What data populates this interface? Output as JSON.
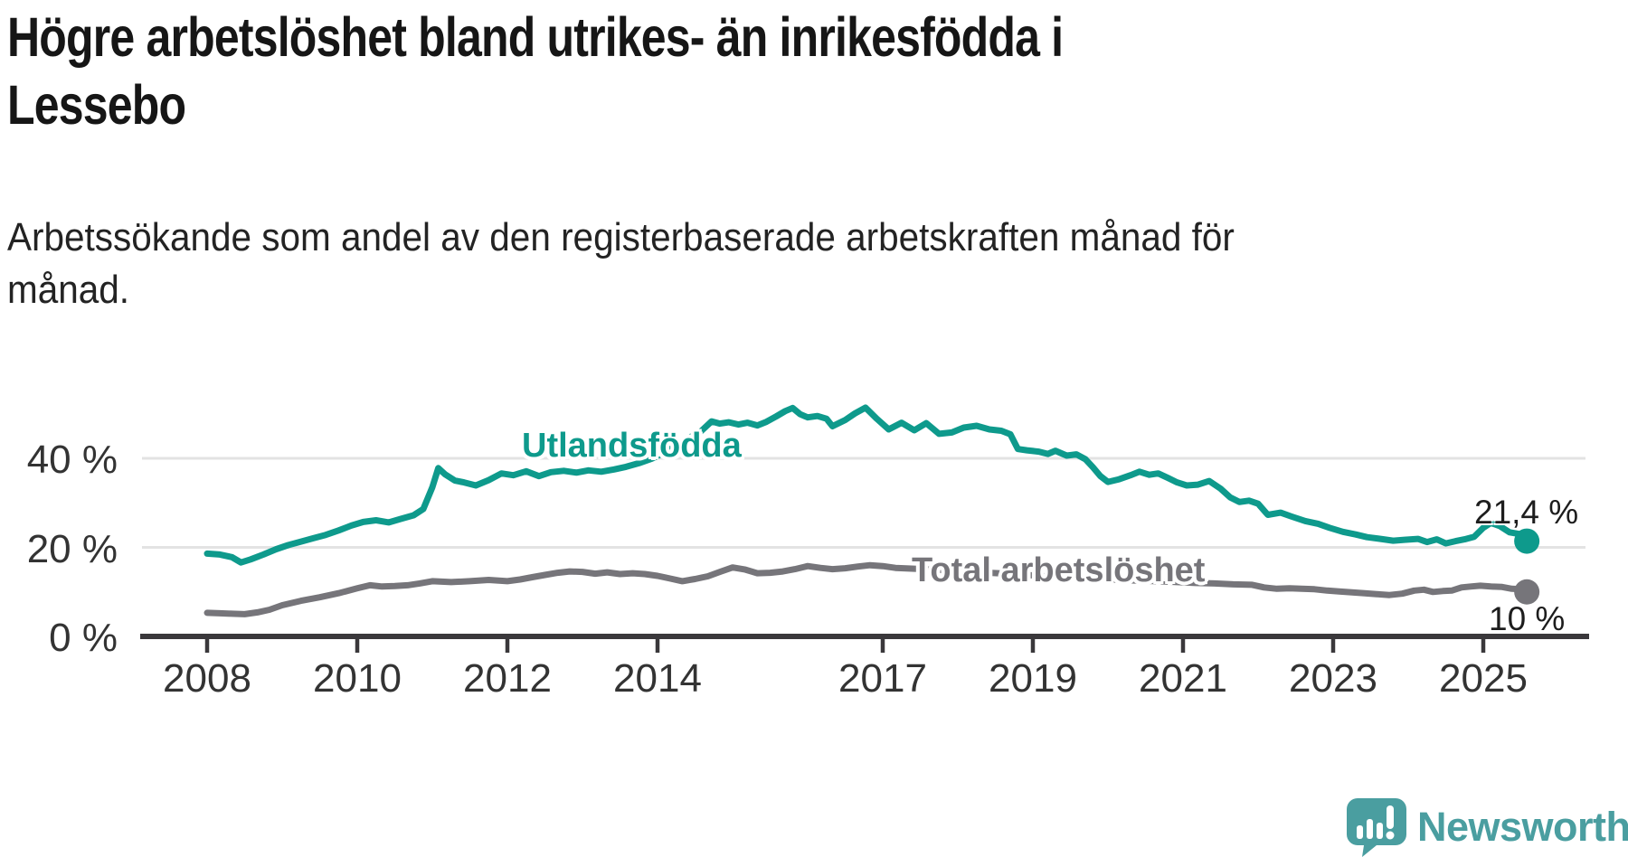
{
  "header": {
    "title": "Högre arbetslöshet bland utrikes- än inrikesfödda i Lessebo",
    "title_lines": [
      "Högre arbetslöshet bland utrikes- än inrikesfödda i",
      "Lessebo"
    ],
    "subtitle": "Arbetssökande som andel av den registerbaserade arbetskraften månad för månad.",
    "subtitle_lines": [
      "Arbetssökande som andel av den registerbaserade arbetskraften månad för",
      "månad."
    ]
  },
  "footer": {
    "brand": "Newsworthy",
    "logo_icon": "newsworthy-speech-bubble-bar-chart"
  },
  "colors": {
    "series_utlandsfodda": "#0E9A8C",
    "series_total": "#76757A",
    "axis": "#3A383B",
    "gridline": "#E3E3E3",
    "tick_text": "#333333",
    "logo_teal": "#4A9EA0"
  },
  "chart_data": {
    "type": "line",
    "title": "Högre arbetslöshet bland utrikes- än inrikesfödda i Lessebo",
    "subtitle": "Arbetssökande som andel av den registerbaserade arbetskraften månad för månad.",
    "unit": "%",
    "grid": "horizontal-only",
    "legend_position": "inline-labels",
    "xlim": [
      2007.1,
      2026.4
    ],
    "ylim": [
      0,
      55
    ],
    "x_ticks": [
      2008,
      2010,
      2012,
      2014,
      2017,
      2019,
      2021,
      2023,
      2025
    ],
    "y_ticks": [
      {
        "value": 0,
        "label": "0 %"
      },
      {
        "value": 20,
        "label": "20 %"
      },
      {
        "value": 40,
        "label": "40 %"
      }
    ],
    "series": [
      {
        "name": "Utlandsfödda",
        "color": "#0E9A8C",
        "end_label": "21,4 %",
        "end_value": 21.4,
        "points": [
          [
            2008.0,
            18.6
          ],
          [
            2008.17,
            18.4
          ],
          [
            2008.33,
            17.8
          ],
          [
            2008.45,
            16.6
          ],
          [
            2008.58,
            17.3
          ],
          [
            2008.75,
            18.4
          ],
          [
            2008.92,
            19.6
          ],
          [
            2009.08,
            20.5
          ],
          [
            2009.25,
            21.3
          ],
          [
            2009.42,
            22.1
          ],
          [
            2009.58,
            22.8
          ],
          [
            2009.75,
            23.8
          ],
          [
            2009.92,
            24.9
          ],
          [
            2010.08,
            25.7
          ],
          [
            2010.25,
            26.1
          ],
          [
            2010.42,
            25.6
          ],
          [
            2010.58,
            26.4
          ],
          [
            2010.75,
            27.2
          ],
          [
            2010.88,
            28.6
          ],
          [
            2011.0,
            33.5
          ],
          [
            2011.08,
            37.8
          ],
          [
            2011.17,
            36.4
          ],
          [
            2011.3,
            35.0
          ],
          [
            2011.42,
            34.6
          ],
          [
            2011.58,
            33.9
          ],
          [
            2011.75,
            35.1
          ],
          [
            2011.92,
            36.6
          ],
          [
            2012.08,
            36.2
          ],
          [
            2012.25,
            37.1
          ],
          [
            2012.42,
            36.0
          ],
          [
            2012.58,
            36.9
          ],
          [
            2012.75,
            37.2
          ],
          [
            2012.92,
            36.8
          ],
          [
            2013.08,
            37.3
          ],
          [
            2013.25,
            37.0
          ],
          [
            2013.42,
            37.5
          ],
          [
            2013.58,
            38.1
          ],
          [
            2013.75,
            38.9
          ],
          [
            2013.92,
            39.9
          ],
          [
            2014.08,
            41.2
          ],
          [
            2014.25,
            42.8
          ],
          [
            2014.42,
            44.6
          ],
          [
            2014.58,
            46.1
          ],
          [
            2014.72,
            48.3
          ],
          [
            2014.83,
            47.8
          ],
          [
            2014.95,
            48.1
          ],
          [
            2015.08,
            47.6
          ],
          [
            2015.2,
            48.0
          ],
          [
            2015.33,
            47.4
          ],
          [
            2015.45,
            48.2
          ],
          [
            2015.58,
            49.4
          ],
          [
            2015.7,
            50.6
          ],
          [
            2015.8,
            51.3
          ],
          [
            2015.9,
            49.9
          ],
          [
            2016.0,
            49.2
          ],
          [
            2016.13,
            49.5
          ],
          [
            2016.25,
            48.9
          ],
          [
            2016.33,
            47.2
          ],
          [
            2016.5,
            48.6
          ],
          [
            2016.63,
            50.1
          ],
          [
            2016.77,
            51.4
          ],
          [
            2016.92,
            48.9
          ],
          [
            2017.08,
            46.5
          ],
          [
            2017.25,
            48.0
          ],
          [
            2017.42,
            46.3
          ],
          [
            2017.58,
            47.9
          ],
          [
            2017.75,
            45.5
          ],
          [
            2017.92,
            45.8
          ],
          [
            2018.08,
            46.9
          ],
          [
            2018.25,
            47.3
          ],
          [
            2018.42,
            46.5
          ],
          [
            2018.58,
            46.2
          ],
          [
            2018.7,
            45.4
          ],
          [
            2018.8,
            42.1
          ],
          [
            2018.92,
            41.8
          ],
          [
            2019.08,
            41.5
          ],
          [
            2019.2,
            41.0
          ],
          [
            2019.3,
            41.7
          ],
          [
            2019.45,
            40.6
          ],
          [
            2019.58,
            40.9
          ],
          [
            2019.7,
            39.8
          ],
          [
            2019.8,
            38.0
          ],
          [
            2019.9,
            36.0
          ],
          [
            2020.0,
            34.7
          ],
          [
            2020.15,
            35.3
          ],
          [
            2020.3,
            36.2
          ],
          [
            2020.42,
            37.0
          ],
          [
            2020.55,
            36.3
          ],
          [
            2020.67,
            36.6
          ],
          [
            2020.8,
            35.6
          ],
          [
            2020.92,
            34.6
          ],
          [
            2021.05,
            33.9
          ],
          [
            2021.2,
            34.1
          ],
          [
            2021.35,
            34.9
          ],
          [
            2021.5,
            33.2
          ],
          [
            2021.63,
            31.2
          ],
          [
            2021.75,
            30.2
          ],
          [
            2021.88,
            30.5
          ],
          [
            2022.0,
            29.8
          ],
          [
            2022.13,
            27.3
          ],
          [
            2022.3,
            27.8
          ],
          [
            2022.45,
            26.9
          ],
          [
            2022.63,
            25.9
          ],
          [
            2022.8,
            25.3
          ],
          [
            2022.95,
            24.4
          ],
          [
            2023.13,
            23.5
          ],
          [
            2023.3,
            22.9
          ],
          [
            2023.45,
            22.3
          ],
          [
            2023.63,
            21.9
          ],
          [
            2023.8,
            21.5
          ],
          [
            2023.95,
            21.7
          ],
          [
            2024.13,
            21.9
          ],
          [
            2024.25,
            21.2
          ],
          [
            2024.38,
            21.8
          ],
          [
            2024.5,
            20.9
          ],
          [
            2024.63,
            21.4
          ],
          [
            2024.75,
            21.8
          ],
          [
            2024.88,
            22.4
          ],
          [
            2025.0,
            24.4
          ],
          [
            2025.1,
            25.5
          ],
          [
            2025.22,
            24.8
          ],
          [
            2025.35,
            23.4
          ],
          [
            2025.48,
            23.0
          ],
          [
            2025.58,
            21.4
          ]
        ]
      },
      {
        "name": "Total arbetslöshet",
        "color": "#76757A",
        "end_label": "10 %",
        "end_value": 10,
        "points": [
          [
            2008.0,
            5.3
          ],
          [
            2008.17,
            5.2
          ],
          [
            2008.33,
            5.1
          ],
          [
            2008.5,
            5.0
          ],
          [
            2008.67,
            5.4
          ],
          [
            2008.83,
            6.0
          ],
          [
            2009.0,
            7.0
          ],
          [
            2009.25,
            8.0
          ],
          [
            2009.5,
            8.8
          ],
          [
            2009.75,
            9.7
          ],
          [
            2010.0,
            10.8
          ],
          [
            2010.17,
            11.5
          ],
          [
            2010.33,
            11.2
          ],
          [
            2010.5,
            11.3
          ],
          [
            2010.67,
            11.5
          ],
          [
            2010.83,
            11.9
          ],
          [
            2011.0,
            12.4
          ],
          [
            2011.25,
            12.2
          ],
          [
            2011.5,
            12.4
          ],
          [
            2011.75,
            12.7
          ],
          [
            2012.0,
            12.4
          ],
          [
            2012.17,
            12.8
          ],
          [
            2012.33,
            13.3
          ],
          [
            2012.5,
            13.8
          ],
          [
            2012.67,
            14.3
          ],
          [
            2012.83,
            14.6
          ],
          [
            2013.0,
            14.5
          ],
          [
            2013.17,
            14.1
          ],
          [
            2013.33,
            14.4
          ],
          [
            2013.5,
            14.0
          ],
          [
            2013.67,
            14.2
          ],
          [
            2013.83,
            14.0
          ],
          [
            2014.0,
            13.6
          ],
          [
            2014.17,
            13.0
          ],
          [
            2014.33,
            12.4
          ],
          [
            2014.5,
            12.9
          ],
          [
            2014.67,
            13.5
          ],
          [
            2014.83,
            14.5
          ],
          [
            2015.0,
            15.5
          ],
          [
            2015.17,
            15.0
          ],
          [
            2015.33,
            14.2
          ],
          [
            2015.5,
            14.3
          ],
          [
            2015.67,
            14.6
          ],
          [
            2015.83,
            15.1
          ],
          [
            2016.0,
            15.8
          ],
          [
            2016.17,
            15.4
          ],
          [
            2016.33,
            15.1
          ],
          [
            2016.5,
            15.3
          ],
          [
            2016.67,
            15.7
          ],
          [
            2016.83,
            16.0
          ],
          [
            2017.0,
            15.8
          ],
          [
            2017.17,
            15.4
          ],
          [
            2017.42,
            15.2
          ],
          [
            2017.67,
            15.0
          ],
          [
            2017.92,
            14.8
          ],
          [
            2018.17,
            14.6
          ],
          [
            2018.42,
            14.3
          ],
          [
            2018.67,
            14.1
          ],
          [
            2018.92,
            13.8
          ],
          [
            2019.17,
            13.5
          ],
          [
            2019.42,
            13.3
          ],
          [
            2019.67,
            13.1
          ],
          [
            2019.92,
            12.9
          ],
          [
            2020.17,
            12.7
          ],
          [
            2020.42,
            12.5
          ],
          [
            2020.67,
            12.4
          ],
          [
            2020.92,
            12.2
          ],
          [
            2021.17,
            12.0
          ],
          [
            2021.42,
            11.9
          ],
          [
            2021.67,
            11.7
          ],
          [
            2021.92,
            11.6
          ],
          [
            2022.08,
            11.0
          ],
          [
            2022.25,
            10.7
          ],
          [
            2022.42,
            10.8
          ],
          [
            2022.58,
            10.7
          ],
          [
            2022.75,
            10.6
          ],
          [
            2022.92,
            10.3
          ],
          [
            2023.08,
            10.1
          ],
          [
            2023.25,
            9.9
          ],
          [
            2023.42,
            9.7
          ],
          [
            2023.58,
            9.5
          ],
          [
            2023.75,
            9.3
          ],
          [
            2023.92,
            9.6
          ],
          [
            2024.08,
            10.3
          ],
          [
            2024.21,
            10.5
          ],
          [
            2024.33,
            10.0
          ],
          [
            2024.46,
            10.2
          ],
          [
            2024.58,
            10.3
          ],
          [
            2024.71,
            11.0
          ],
          [
            2024.83,
            11.2
          ],
          [
            2024.96,
            11.4
          ],
          [
            2025.1,
            11.2
          ],
          [
            2025.25,
            11.1
          ],
          [
            2025.38,
            10.7
          ],
          [
            2025.5,
            10.6
          ],
          [
            2025.58,
            10.0
          ]
        ]
      }
    ]
  }
}
